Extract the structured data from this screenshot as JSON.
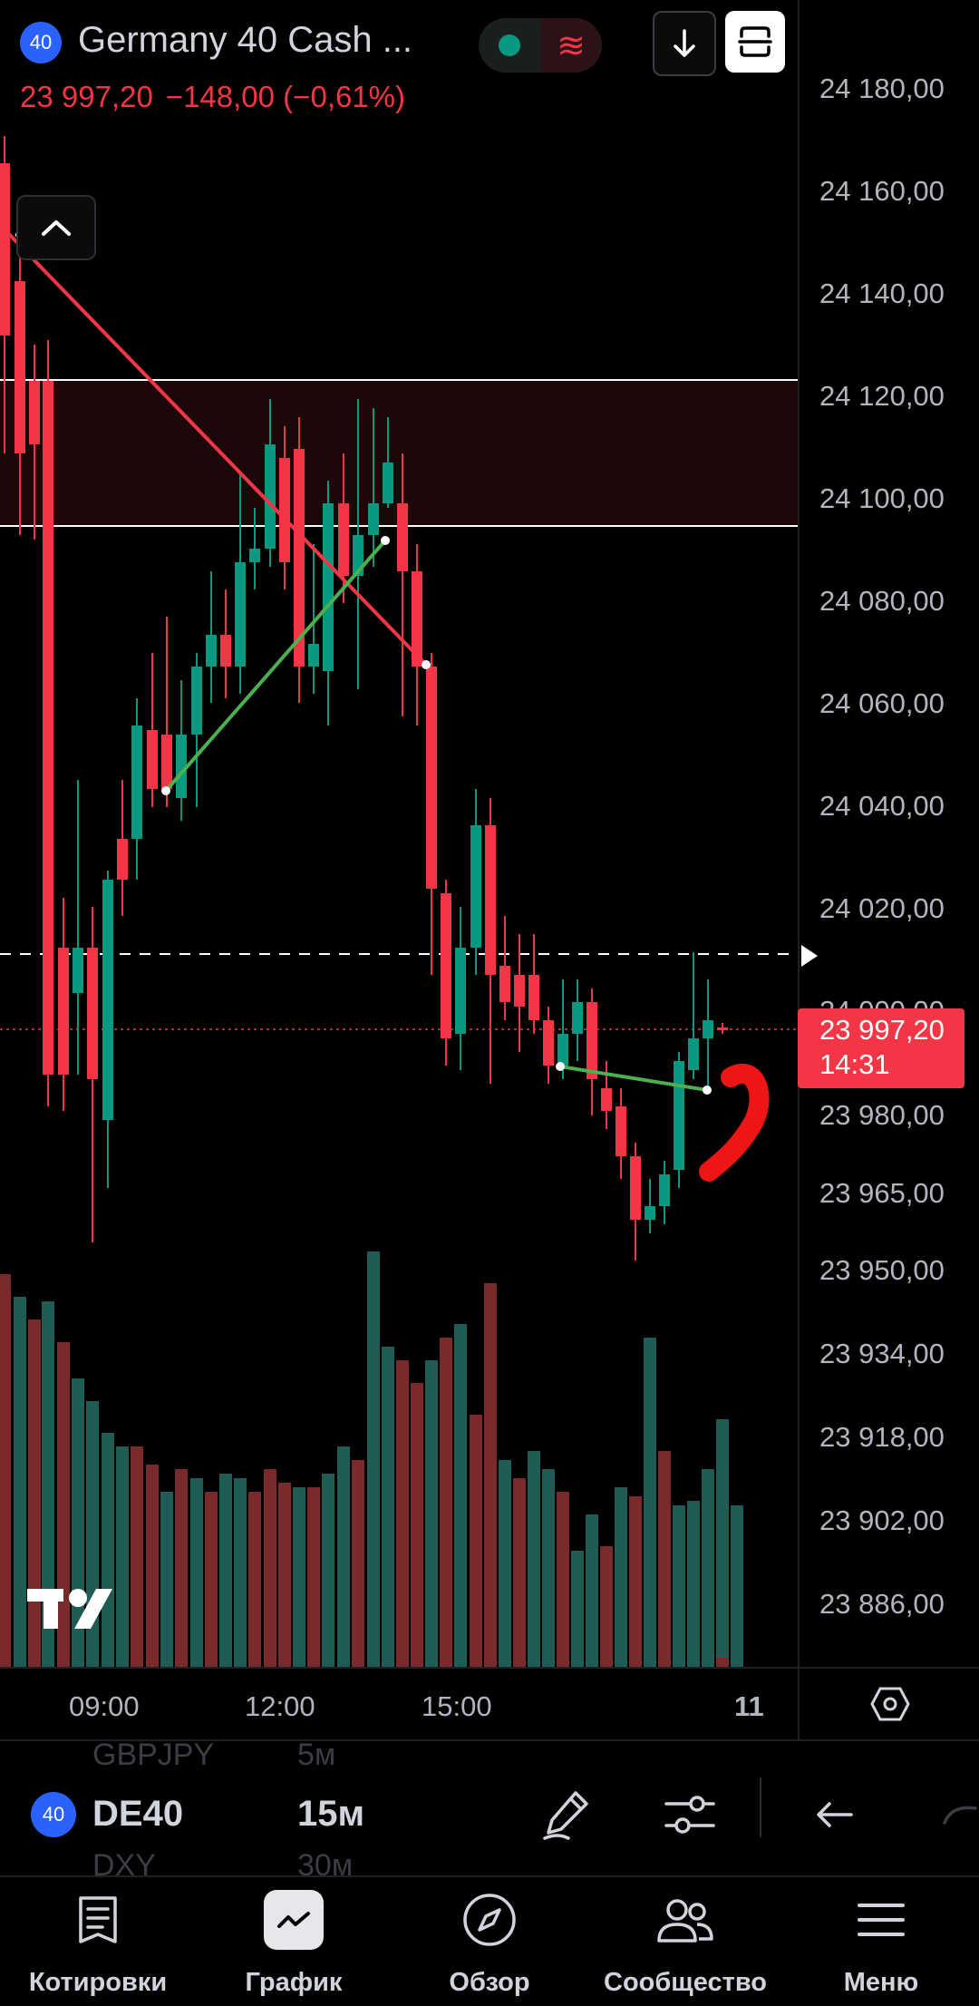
{
  "header": {
    "symbol_badge": "40",
    "title": "Germany 40 Cash ...",
    "last_price": "23 997,20",
    "change": "−148,00 (−0,61%)",
    "market_status_icon": "market-open-dot",
    "delay_icon": "wave-icon",
    "download_button_icon": "arrow-down-icon",
    "capture_button_icon": "fullscreen-icon"
  },
  "chart": {
    "collapse_icon": "chevron-up-icon",
    "watermark": "TV",
    "colors": {
      "up": "#089981",
      "down": "#f23645",
      "background": "#000000",
      "zone": "#2a0a0c",
      "trendline_down": "#f23645",
      "trendline_up": "#4caf50"
    }
  },
  "price_scale": {
    "ticks": [
      "24 180,00",
      "24 160,00",
      "24 140,00",
      "24 120,00",
      "24 100,00",
      "24 080,00",
      "24 060,00",
      "24 040,00",
      "24 020,00",
      "24 000,00",
      "23 980,00",
      "23 965,00",
      "23 950,00",
      "23 934,00",
      "23 918,00",
      "23 902,00",
      "23 886,00"
    ],
    "current_price": "23 997,20",
    "countdown": "14:31"
  },
  "time_axis": {
    "labels": [
      "09:00",
      "12:00",
      "15:00",
      "11"
    ],
    "settings_icon": "hexagon-settings-icon"
  },
  "toolbar": {
    "prev_symbol": "GBPJPY",
    "prev_interval": "5м",
    "symbol_badge": "40",
    "symbol": "DE40",
    "interval": "15м",
    "next_symbol": "DXY",
    "next_interval": "30м",
    "draw_icon": "pen-icon",
    "indicators_icon": "sliders-icon",
    "undo_icon": "undo-icon"
  },
  "nav": {
    "items": [
      {
        "label": "Котировки",
        "icon": "list-icon"
      },
      {
        "label": "График",
        "icon": "chart-icon",
        "active": true
      },
      {
        "label": "Обзор",
        "icon": "compass-icon"
      },
      {
        "label": "Сообщество",
        "icon": "community-icon"
      },
      {
        "label": "Меню",
        "icon": "menu-icon"
      }
    ]
  }
}
